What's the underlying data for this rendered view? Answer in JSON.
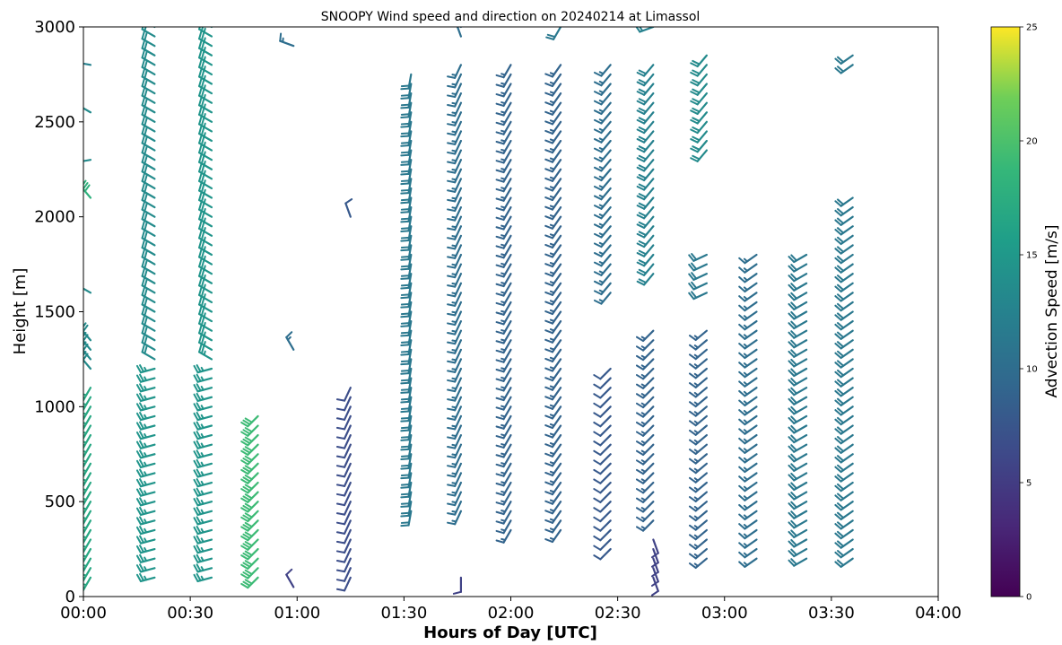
{
  "chart_data": {
    "type": "wind_barbs",
    "title": "SNOOPY Wind speed and direction on 20240214 at Limassol",
    "xlabel": "Hours of Day [UTC]",
    "ylabel": "Height [m]",
    "colorbar_label": "Advection Speed [m/s]",
    "xlim_minutes": [
      0,
      240
    ],
    "ylim": [
      0,
      3000
    ],
    "x_tick_labels": [
      "00:00",
      "00:30",
      "01:00",
      "01:30",
      "02:00",
      "02:30",
      "03:00",
      "03:30",
      "04:00"
    ],
    "x_tick_minutes": [
      0,
      30,
      60,
      90,
      120,
      150,
      180,
      210,
      240
    ],
    "y_ticks": [
      0,
      500,
      1000,
      1500,
      2000,
      2500,
      3000
    ],
    "colorbar": {
      "colormap": "viridis",
      "range": [
        0,
        25
      ],
      "ticks": [
        0,
        5,
        10,
        15,
        20,
        25
      ]
    },
    "profiles": [
      {
        "time_minutes": 2,
        "segments": [
          {
            "h_from": 60,
            "h_to": 1140,
            "speed": 15,
            "direction_deg": 210
          },
          {
            "h_from": 1180,
            "h_to": 1370,
            "speed": 12,
            "direction_deg": 320
          },
          {
            "h_from": 1600,
            "h_to": 1630,
            "speed": 12,
            "direction_deg": 300
          },
          {
            "h_from": 1960,
            "h_to": 1980,
            "speed": 12,
            "direction_deg": 270
          },
          {
            "h_from": 2090,
            "h_to": 2130,
            "speed": 16,
            "direction_deg": 320
          },
          {
            "h_from": 2300,
            "h_to": 2310,
            "speed": 12,
            "direction_deg": 260
          },
          {
            "h_from": 2520,
            "h_to": 2550,
            "speed": 12,
            "direction_deg": 300
          },
          {
            "h_from": 2780,
            "h_to": 2800,
            "speed": 11,
            "direction_deg": 280
          }
        ]
      },
      {
        "time_minutes": 20,
        "segments": [
          {
            "h_from": 60,
            "h_to": 1200,
            "speed": 13,
            "direction_deg": 255
          },
          {
            "h_from": 1250,
            "h_to": 3000,
            "speed": 12,
            "direction_deg": 300
          }
        ]
      },
      {
        "time_minutes": 36,
        "segments": [
          {
            "h_from": 60,
            "h_to": 1200,
            "speed": 13,
            "direction_deg": 255
          },
          {
            "h_from": 1250,
            "h_to": 3000,
            "speed": 13,
            "direction_deg": 300
          }
        ]
      },
      {
        "time_minutes": 49,
        "segments": [
          {
            "h_from": 80,
            "h_to": 990,
            "speed": 17,
            "direction_deg": 225
          }
        ]
      },
      {
        "time_minutes": 59,
        "segments": [
          {
            "h_from": 20,
            "h_to": 60,
            "speed": 5,
            "direction_deg": 330
          },
          {
            "h_from": 1270,
            "h_to": 1300,
            "speed": 9,
            "direction_deg": 330
          },
          {
            "h_from": 2900,
            "h_to": 2930,
            "speed": 9,
            "direction_deg": 290
          }
        ]
      },
      {
        "time_minutes": 75,
        "segments": [
          {
            "h_from": 60,
            "h_to": 1140,
            "speed": 6,
            "direction_deg": 205
          },
          {
            "h_from": 2000,
            "h_to": 2040,
            "speed": 7,
            "direction_deg": 340
          }
        ]
      },
      {
        "time_minutes": 92,
        "segments": [
          {
            "h_from": 430,
            "h_to": 2760,
            "speed": 10,
            "direction_deg": 190
          }
        ]
      },
      {
        "time_minutes": 106,
        "segments": [
          {
            "h_from": 80,
            "h_to": 120,
            "speed": 5,
            "direction_deg": 180
          },
          {
            "h_from": 430,
            "h_to": 2800,
            "speed": 9,
            "direction_deg": 205
          },
          {
            "h_from": 2940,
            "h_to": 3000,
            "speed": 9,
            "direction_deg": 340
          }
        ]
      },
      {
        "time_minutes": 120,
        "segments": [
          {
            "h_from": 340,
            "h_to": 2800,
            "speed": 8,
            "direction_deg": 210
          }
        ]
      },
      {
        "time_minutes": 134,
        "segments": [
          {
            "h_from": 340,
            "h_to": 2800,
            "speed": 8,
            "direction_deg": 215
          },
          {
            "h_from": 2960,
            "h_to": 3000,
            "speed": 10,
            "direction_deg": 210
          }
        ]
      },
      {
        "time_minutes": 148,
        "segments": [
          {
            "h_from": 250,
            "h_to": 1220,
            "speed": 7,
            "direction_deg": 225
          },
          {
            "h_from": 1580,
            "h_to": 2800,
            "speed": 9,
            "direction_deg": 220
          }
        ]
      },
      {
        "time_minutes": 160,
        "segments": [
          {
            "h_from": 90,
            "h_to": 340,
            "speed": 5,
            "direction_deg": 160
          },
          {
            "h_from": 380,
            "h_to": 1440,
            "speed": 8,
            "direction_deg": 225
          },
          {
            "h_from": 1660,
            "h_to": 2800,
            "speed": 11,
            "direction_deg": 220
          },
          {
            "h_from": 2980,
            "h_to": 3000,
            "speed": 11,
            "direction_deg": 250
          }
        ]
      },
      {
        "time_minutes": 175,
        "segments": [
          {
            "h_from": 170,
            "h_to": 1440,
            "speed": 8,
            "direction_deg": 230
          },
          {
            "h_from": 1600,
            "h_to": 1800,
            "speed": 10,
            "direction_deg": 245
          },
          {
            "h_from": 2310,
            "h_to": 2890,
            "speed": 12,
            "direction_deg": 220
          }
        ]
      },
      {
        "time_minutes": 189,
        "segments": [
          {
            "h_from": 170,
            "h_to": 1800,
            "speed": 9,
            "direction_deg": 235
          }
        ]
      },
      {
        "time_minutes": 203,
        "segments": [
          {
            "h_from": 170,
            "h_to": 1800,
            "speed": 10,
            "direction_deg": 240
          }
        ]
      },
      {
        "time_minutes": 216,
        "segments": [
          {
            "h_from": 170,
            "h_to": 2140,
            "speed": 10,
            "direction_deg": 235
          },
          {
            "h_from": 2760,
            "h_to": 2890,
            "speed": 10,
            "direction_deg": 235
          }
        ]
      }
    ]
  }
}
